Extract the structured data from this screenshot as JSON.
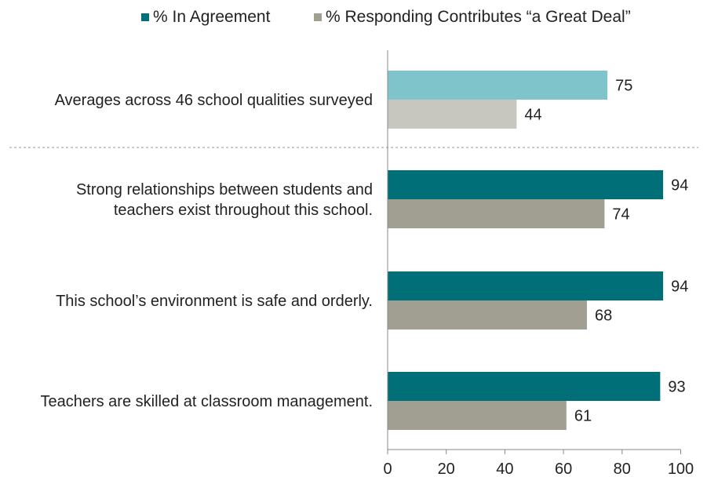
{
  "chart_data": {
    "type": "bar",
    "orientation": "horizontal",
    "categories": [
      [
        "Averages across 46 school qualities surveyed"
      ],
      [
        "Strong relationships between students and",
        "teachers exist throughout this school."
      ],
      [
        "This school’s environment is safe and orderly."
      ],
      [
        "Teachers are skilled at classroom management."
      ]
    ],
    "series": [
      {
        "name": "% In Agreement",
        "values": [
          75,
          94,
          94,
          93
        ],
        "color": "#006f77",
        "highlight_colors": [
          "#7fc4ca",
          "#006f77",
          "#006f77",
          "#006f77"
        ]
      },
      {
        "name": "% Responding Contributes “a Great Deal”",
        "values": [
          44,
          74,
          68,
          61
        ],
        "color": "#a09f92",
        "highlight_colors": [
          "#c8c7bf",
          "#a09f92",
          "#a09f92",
          "#a09f92"
        ]
      }
    ],
    "xlim": [
      0,
      100
    ],
    "xticks": [
      0,
      20,
      40,
      60,
      80,
      100
    ],
    "legend_position": "top",
    "separator_after_category": 0
  }
}
